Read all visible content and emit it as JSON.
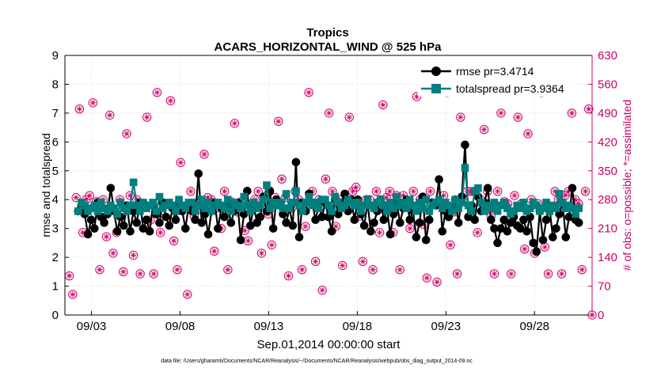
{
  "chart_data": {
    "type": "line",
    "title": "Tropics",
    "subtitle": "ACARS_HORIZONTAL_WIND @ 525 hPa",
    "xlabel": "Sep.01,2014 00:00:00 start",
    "ylabel_left": "rmse and totalspread",
    "ylabel_right": "# of obs: o=possible; *=assimilated",
    "footnote": "data file: /Users/gharamti/Documents/NCAR/Reanalysis/~/Documents/NCAR/Reanalysis/webpub/obs_diag_output_2014-09.nc",
    "x_range_days": [
      0.5,
      30.25
    ],
    "xticks": [
      {
        "day": 2,
        "label": "09/03"
      },
      {
        "day": 7,
        "label": "09/08"
      },
      {
        "day": 12,
        "label": "09/13"
      },
      {
        "day": 17,
        "label": "09/18"
      },
      {
        "day": 22,
        "label": "09/23"
      },
      {
        "day": 27,
        "label": "09/28"
      }
    ],
    "ylim_left": [
      0,
      9
    ],
    "yticks_left": [
      "0",
      "1",
      "2",
      "3",
      "4",
      "5",
      "6",
      "7",
      "8",
      "9"
    ],
    "ylim_right": [
      0,
      630
    ],
    "yticks_right": [
      "0",
      "70",
      "140",
      "210",
      "280",
      "350",
      "420",
      "490",
      "560",
      "630"
    ],
    "legend": [
      {
        "name": "rmse",
        "label": "rmse pr=3.4714",
        "color": "#000000"
      },
      {
        "name": "totalspread",
        "label": "totalspread pr=3.9364",
        "color": "#007f7f"
      }
    ],
    "colors": {
      "rmse": "#000000",
      "spread": "#007f7f",
      "obs": "#cc0066"
    },
    "series": [
      {
        "name": "rmse",
        "values": [
          3.6,
          3.8,
          3.5,
          2.8,
          3.3,
          3.0,
          3.9,
          3.4,
          3.2,
          3.5,
          4.4,
          3.6,
          2.9,
          3.4,
          3.1,
          3.8,
          2.9,
          3.6,
          3.2,
          3.9,
          3.0,
          3.3,
          2.9,
          3.8,
          3.5,
          3.2,
          3.9,
          3.4,
          3.1,
          3.7,
          3.3,
          3.9,
          3.6,
          3.0,
          3.8,
          3.6,
          3.3,
          4.9,
          3.2,
          3.5,
          2.8,
          3.6,
          3.9,
          3.0,
          3.7,
          3.4,
          3.8,
          3.2,
          3.6,
          3.9,
          2.6,
          3.5,
          4.3,
          3.1,
          3.8,
          3.2,
          3.4,
          4.1,
          3.6,
          4.3,
          3.0,
          4.0,
          3.8,
          3.5,
          3.2,
          3.7,
          3.1,
          5.3,
          2.7,
          3.9,
          3.6,
          4.2,
          3.9,
          3.3,
          3.8,
          3.4,
          3.9,
          3.4,
          2.9,
          4.0,
          3.5,
          3.8,
          4.2,
          3.6,
          4.0,
          3.3,
          4.0,
          3.5,
          3.1,
          3.9,
          2.9,
          3.2,
          3.6,
          4.0,
          3.3,
          3.7,
          2.8,
          3.5,
          3.9,
          3.2,
          3.7,
          4.0,
          3.3,
          3.6,
          2.7,
          3.2,
          4.1,
          2.6,
          3.3,
          3.9,
          3.8,
          4.7,
          2.9,
          3.6,
          3.4,
          3.7,
          4.0,
          3.2,
          4.1,
          5.9,
          3.4,
          3.8,
          3.3,
          4.1,
          3.6,
          3.9,
          4.4,
          3.3,
          3.0,
          2.5,
          3.0,
          3.3,
          2.9,
          3.2,
          3.4,
          3.1,
          3.0,
          3.3,
          2.9,
          3.4,
          2.5,
          2.2,
          3.6,
          2.6,
          3.3,
          3.7,
          2.7,
          3.0,
          3.5,
          3.9,
          2.7,
          3.4,
          4.4,
          3.3,
          3.2
        ]
      },
      {
        "name": "totalspread",
        "values": [
          3.6,
          3.9,
          3.8,
          3.6,
          3.7,
          3.8,
          3.6,
          3.9,
          3.7,
          3.6,
          3.8,
          3.7,
          3.5,
          3.9,
          3.7,
          3.6,
          3.8,
          4.6,
          3.8,
          3.6,
          3.9,
          3.7,
          3.8,
          3.9,
          3.6,
          4.1,
          3.7,
          3.8,
          3.9,
          3.8,
          3.6,
          4.0,
          3.8,
          3.7,
          3.9,
          3.9,
          3.6,
          3.8,
          4.0,
          3.7,
          3.9,
          3.6,
          3.8,
          3.9,
          3.8,
          3.7,
          4.0,
          3.6,
          3.9,
          3.8,
          3.7,
          4.1,
          3.8,
          3.6,
          3.9,
          3.7,
          3.8,
          4.0,
          4.5,
          3.7,
          3.9,
          3.8,
          3.9,
          3.7,
          4.2,
          3.7,
          3.9,
          4.3,
          3.8,
          3.6,
          3.9,
          4.1,
          3.8,
          3.9,
          3.7,
          4.0,
          4.0,
          3.8,
          3.6,
          4.1,
          3.9,
          3.7,
          3.8,
          4.0,
          3.9,
          3.8,
          3.9,
          3.6,
          3.8,
          4.0,
          3.8,
          3.7,
          3.9,
          4.0,
          3.8,
          3.6,
          3.9,
          3.7,
          4.1,
          3.8,
          3.9,
          3.7,
          4.0,
          3.8,
          3.6,
          3.9,
          3.7,
          4.0,
          3.6,
          3.8,
          3.9,
          4.0,
          3.7,
          3.9,
          3.8,
          3.6,
          4.0,
          3.7,
          3.9,
          5.1,
          3.8,
          3.6,
          4.3,
          4.4,
          3.9,
          3.6,
          3.8,
          3.7,
          3.9,
          3.6,
          3.8,
          3.9,
          3.7,
          3.5,
          3.6,
          3.8,
          3.7,
          3.9,
          3.6,
          3.7,
          3.9,
          3.8,
          3.6,
          3.7,
          3.9,
          3.6,
          3.8,
          3.7,
          4.2,
          3.9,
          3.7,
          3.8,
          3.7,
          3.5,
          3.7
        ]
      },
      {
        "name": "obs_possible",
        "values": [
          95,
          50,
          285,
          500,
          200,
          280,
          290,
          515,
          275,
          110,
          280,
          190,
          485,
          150,
          200,
          280,
          105,
          440,
          290,
          145,
          280,
          100,
          270,
          480,
          230,
          100,
          540,
          200,
          270,
          270,
          520,
          180,
          110,
          370,
          260,
          50,
          300,
          240,
          255,
          275,
          390,
          285,
          280,
          155,
          260,
          210,
          300,
          110,
          275,
          465,
          250,
          275,
          205,
          180,
          270,
          280,
          300,
          150,
          275,
          245,
          170,
          285,
          470,
          330,
          285,
          95,
          260,
          300,
          280,
          110,
          215,
          540,
          300,
          130,
          280,
          60,
          330,
          490,
          300,
          215,
          280,
          120,
          280,
          480,
          300,
          310,
          240,
          130,
          280,
          280,
          110,
          300,
          200,
          510,
          285,
          300,
          200,
          290,
          110,
          290,
          275,
          210,
          300,
          530,
          280,
          220,
          90,
          300,
          270,
          80,
          550,
          290,
          540,
          170,
          250,
          100,
          480,
          280,
          300,
          300,
          300,
          200,
          280,
          450,
          300,
          240,
          100,
          300,
          490,
          275,
          270,
          100,
          290,
          480,
          270,
          160,
          440,
          280,
          150,
          270,
          540,
          165,
          100,
          260,
          300,
          280,
          100,
          290,
          300,
          490,
          280,
          270,
          110,
          300,
          500,
          0
        ]
      },
      {
        "name": "obs_assimilated",
        "values": [
          95,
          50,
          285,
          500,
          200,
          280,
          290,
          515,
          275,
          110,
          280,
          190,
          485,
          150,
          200,
          280,
          105,
          440,
          290,
          145,
          280,
          100,
          270,
          480,
          230,
          100,
          540,
          200,
          270,
          270,
          520,
          180,
          110,
          370,
          260,
          50,
          300,
          240,
          255,
          275,
          390,
          285,
          280,
          155,
          260,
          210,
          300,
          110,
          275,
          465,
          250,
          275,
          205,
          180,
          270,
          280,
          300,
          150,
          275,
          245,
          170,
          285,
          470,
          330,
          285,
          95,
          260,
          300,
          280,
          110,
          215,
          540,
          300,
          130,
          280,
          60,
          330,
          490,
          300,
          215,
          280,
          120,
          280,
          480,
          300,
          310,
          240,
          130,
          280,
          280,
          110,
          300,
          200,
          510,
          285,
          300,
          200,
          290,
          110,
          290,
          275,
          210,
          300,
          530,
          280,
          220,
          90,
          300,
          270,
          80,
          550,
          290,
          540,
          170,
          250,
          100,
          480,
          280,
          300,
          300,
          300,
          200,
          280,
          450,
          300,
          240,
          100,
          300,
          490,
          275,
          270,
          100,
          290,
          480,
          270,
          160,
          440,
          280,
          150,
          270,
          540,
          165,
          100,
          260,
          300,
          280,
          100,
          290,
          300,
          490,
          280,
          270,
          110,
          300,
          500,
          0
        ]
      }
    ]
  }
}
